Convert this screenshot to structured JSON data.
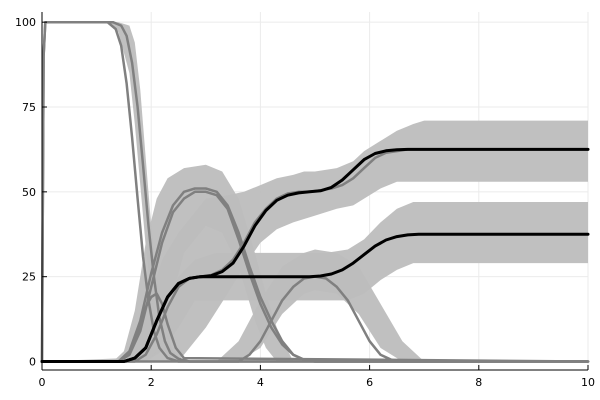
{
  "chart_data": {
    "type": "line",
    "title": "",
    "xlabel": "",
    "ylabel": "",
    "xlim": [
      0,
      10
    ],
    "ylim": [
      -2.5,
      103
    ],
    "grid": true,
    "legend": "none",
    "x_ticks": [
      0,
      2,
      4,
      6,
      8,
      10
    ],
    "x_tick_labels": [
      "0",
      "2",
      "4",
      "6",
      "8",
      "10"
    ],
    "y_ticks": [
      0,
      25,
      50,
      75,
      100
    ],
    "y_tick_labels": [
      "0",
      "25",
      "50",
      "75",
      "100"
    ],
    "colors": {
      "band": "#bdbdbd",
      "grey_line": "#808080",
      "black_line": "#000000",
      "grid": "#ebebeb",
      "axis": "#000000"
    },
    "bands": [
      {
        "x": [
          0,
          1.5,
          1.65,
          1.8,
          2.0,
          2.2,
          2.5,
          3.0,
          3.4,
          3.7,
          4.0,
          4.3,
          4.6,
          4.8,
          5.0,
          5.4,
          5.7,
          5.9,
          6.2,
          6.5,
          6.8,
          7.0,
          10
        ],
        "upper": [
          0,
          1,
          4,
          12,
          20,
          30,
          38,
          48,
          49,
          50,
          52,
          54,
          55,
          56,
          56,
          57,
          59,
          62,
          65,
          68,
          70,
          71,
          71
        ],
        "lower": [
          0,
          0,
          0,
          0,
          0,
          0,
          0,
          10,
          20,
          28,
          35,
          39,
          41,
          42,
          43,
          45,
          46,
          48,
          51,
          53,
          53,
          53,
          53
        ]
      },
      {
        "x": [
          0,
          1.5,
          1.7,
          1.9,
          2.2,
          2.5,
          2.8,
          3.2,
          3.6,
          4.0,
          4.4,
          4.8,
          5.2,
          5.6,
          5.9,
          6.2,
          6.5,
          6.8,
          7.0,
          10
        ],
        "upper": [
          0,
          0,
          2,
          6,
          15,
          25,
          30,
          32,
          32,
          32,
          32,
          32,
          32,
          33,
          36,
          41,
          45,
          47,
          47,
          47
        ],
        "lower": [
          0,
          0,
          0,
          0,
          3,
          10,
          18,
          18,
          18,
          18,
          18,
          18,
          18,
          18,
          20,
          24,
          27,
          29,
          29,
          29
        ]
      },
      {
        "x": [
          0,
          1.3,
          1.5,
          1.7,
          1.9,
          2.1,
          2.3,
          2.6,
          3.0,
          3.3,
          3.6,
          3.9,
          4.1,
          4.3,
          4.6,
          10
        ],
        "upper": [
          0,
          0,
          3,
          15,
          35,
          48,
          54,
          57,
          58,
          56,
          48,
          32,
          20,
          10,
          0,
          0
        ],
        "lower": [
          0,
          0,
          0,
          0,
          0,
          3,
          14,
          32,
          40,
          38,
          28,
          12,
          4,
          0,
          0,
          0
        ]
      },
      {
        "x": [
          0,
          3.2,
          3.6,
          4.0,
          4.4,
          4.8,
          5.0,
          5.4,
          5.8,
          6.2,
          6.6,
          7.0,
          10
        ],
        "upper": [
          0,
          0,
          6,
          18,
          28,
          32,
          33,
          32,
          28,
          17,
          6,
          0,
          0
        ],
        "lower": [
          0,
          0,
          0,
          4,
          14,
          20,
          21,
          20,
          14,
          4,
          0,
          0,
          0
        ]
      },
      {
        "x": [
          0,
          1.2,
          1.4,
          1.6,
          1.7,
          1.8,
          1.9,
          2.0,
          2.1,
          2.2,
          2.4,
          2.6,
          10
        ],
        "upper": [
          100,
          100,
          100,
          99,
          94,
          80,
          60,
          40,
          24,
          12,
          3,
          0,
          0
        ],
        "lower": [
          100,
          100,
          97,
          85,
          70,
          52,
          34,
          20,
          10,
          4,
          0,
          0,
          0
        ]
      }
    ],
    "series": [
      {
        "style": "grey",
        "x": [
          0,
          0.03,
          0.06,
          1.3,
          1.45,
          1.55,
          1.65,
          1.75,
          1.85,
          1.95,
          2.05,
          2.15,
          2.25,
          2.35,
          2.5,
          2.7,
          10
        ],
        "values": [
          0,
          90,
          100,
          100,
          99,
          96,
          88,
          75,
          58,
          40,
          25,
          13,
          6,
          2.5,
          0.8,
          0,
          0
        ]
      },
      {
        "style": "grey",
        "x": [
          0,
          0.03,
          0.06,
          1.2,
          1.35,
          1.45,
          1.55,
          1.65,
          1.75,
          1.85,
          1.95,
          2.05,
          2.15,
          2.3,
          2.5,
          10
        ],
        "values": [
          0,
          90,
          100,
          100,
          98,
          93,
          82,
          66,
          48,
          31,
          18,
          9,
          4,
          1,
          0,
          0
        ]
      },
      {
        "style": "grey",
        "x": [
          0,
          1.4,
          1.6,
          1.8,
          1.9,
          2.0,
          2.1,
          2.2,
          2.3,
          2.45,
          2.6,
          10
        ],
        "values": [
          0,
          0,
          2,
          10,
          16,
          19,
          20,
          17,
          11,
          4,
          1,
          0
        ]
      },
      {
        "style": "grey",
        "x": [
          0,
          1.4,
          1.6,
          1.8,
          2.0,
          2.2,
          2.4,
          2.6,
          2.8,
          3.0,
          3.2,
          3.4,
          3.6,
          3.8,
          4.0,
          4.2,
          4.4,
          4.6,
          4.8,
          5.0,
          10
        ],
        "values": [
          0,
          0,
          2,
          9,
          22,
          35,
          44,
          48,
          50,
          50,
          49,
          45,
          36,
          26,
          17,
          10,
          5,
          2,
          0.5,
          0,
          0
        ]
      },
      {
        "style": "grey",
        "x": [
          0,
          1.4,
          1.6,
          1.8,
          2.0,
          2.2,
          2.4,
          2.6,
          2.8,
          3.0,
          3.2,
          3.4,
          3.6,
          3.8,
          4.0,
          4.2,
          4.4,
          4.6,
          4.8,
          5.0,
          10
        ],
        "values": [
          0,
          0,
          3,
          12,
          26,
          38,
          46,
          50,
          51,
          51,
          50,
          46,
          38,
          28,
          19,
          12,
          6,
          2,
          0.5,
          0,
          0
        ]
      },
      {
        "style": "grey",
        "x": [
          0,
          3.6,
          3.8,
          4.0,
          4.2,
          4.4,
          4.6,
          4.8,
          5.0,
          5.2,
          5.4,
          5.6,
          5.8,
          6.0,
          6.2,
          6.4,
          6.6,
          10
        ],
        "values": [
          0,
          0,
          2,
          6,
          12,
          18,
          22,
          24.5,
          25,
          24.5,
          22,
          18,
          12,
          6,
          2,
          0.5,
          0,
          0
        ]
      },
      {
        "style": "grey",
        "x": [
          0,
          1.7,
          1.9,
          2.1,
          2.3,
          2.5,
          2.7,
          2.9,
          3.1,
          3.3,
          3.5,
          3.7,
          3.9,
          4.1,
          4.3,
          4.5,
          4.7,
          4.9,
          5.1,
          5.3,
          5.5,
          5.7,
          5.9,
          6.1,
          6.3,
          6.5,
          6.7,
          6.9,
          7.1,
          10
        ],
        "values": [
          0,
          0,
          2,
          8,
          16,
          22,
          24.5,
          25,
          25.5,
          27,
          30,
          35,
          41,
          45,
          48,
          49.5,
          50,
          50,
          50.5,
          51,
          52,
          54,
          57,
          60,
          61.5,
          62,
          62.5,
          62.5,
          62.5,
          62.5
        ]
      },
      {
        "style": "black",
        "x": [
          0,
          1.5,
          1.7,
          1.9,
          2.1,
          2.3,
          2.5,
          2.7,
          2.9,
          3.1,
          3.3,
          3.5,
          3.7,
          3.9,
          4.1,
          4.3,
          4.5,
          4.7,
          4.9,
          5.1,
          5.3,
          5.5,
          5.7,
          5.9,
          6.1,
          6.3,
          6.5,
          6.7,
          6.9,
          7.1,
          10
        ],
        "values": [
          0,
          0,
          1,
          4,
          12,
          19,
          23,
          24.5,
          25,
          25.3,
          26.5,
          29,
          34,
          40,
          44.5,
          47.5,
          49,
          49.7,
          50,
          50.3,
          51.3,
          53.5,
          56.5,
          59.5,
          61.3,
          62.1,
          62.4,
          62.5,
          62.5,
          62.5,
          62.5
        ]
      },
      {
        "style": "black",
        "x": [
          0,
          1.5,
          1.7,
          1.9,
          2.1,
          2.3,
          2.5,
          2.7,
          2.9,
          3.1,
          3.3,
          3.5,
          3.7,
          3.9,
          4.1,
          4.3,
          4.5,
          4.7,
          4.9,
          5.1,
          5.3,
          5.5,
          5.7,
          5.9,
          6.1,
          6.3,
          6.5,
          6.7,
          6.9,
          7.1,
          10
        ],
        "values": [
          0,
          0,
          1,
          4,
          12,
          19,
          23,
          24.5,
          25,
          25,
          25,
          25,
          25,
          25,
          25,
          25,
          25,
          25,
          25,
          25.2,
          25.8,
          27,
          29,
          31.5,
          34,
          35.8,
          36.8,
          37.3,
          37.5,
          37.5,
          37.5
        ]
      }
    ]
  }
}
